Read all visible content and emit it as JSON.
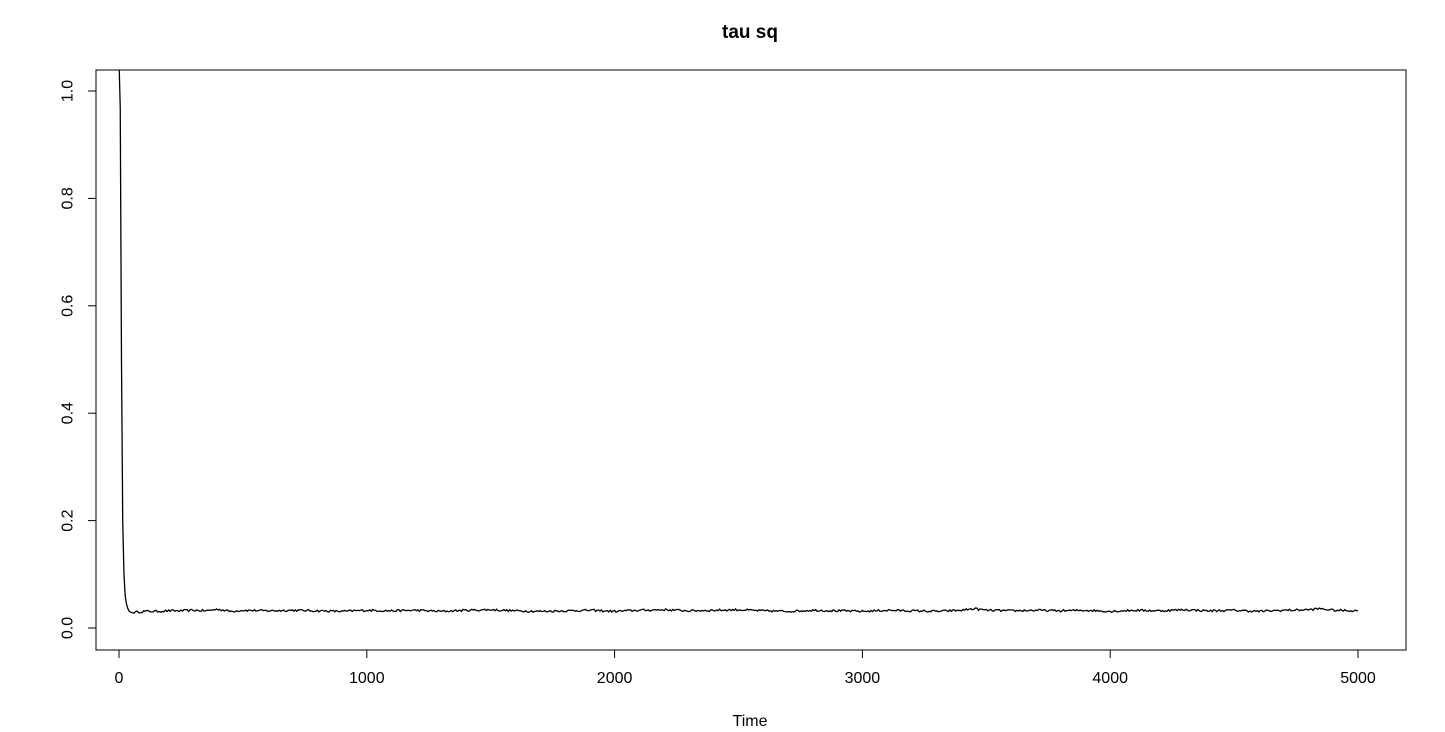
{
  "chart_data": {
    "type": "line",
    "title": "tau sq",
    "xlabel": "Time",
    "ylabel": "",
    "xlim": [
      0,
      5000
    ],
    "ylim": [
      0,
      1.0
    ],
    "x_ticks": [
      0,
      1000,
      2000,
      3000,
      4000,
      5000
    ],
    "x_tick_labels": [
      "0",
      "1000",
      "2000",
      "3000",
      "4000",
      "5000"
    ],
    "y_ticks": [
      0.0,
      0.2,
      0.4,
      0.6,
      0.8,
      1.0
    ],
    "y_tick_labels": [
      "0.0",
      "0.2",
      "0.4",
      "0.6",
      "0.8",
      "1.0"
    ],
    "grid": false,
    "legend": "none",
    "line_color": "#000000",
    "series": [
      {
        "x": [
          1,
          5,
          10,
          15,
          20,
          25,
          30,
          35,
          40,
          45,
          50,
          60,
          80,
          100,
          150,
          200,
          250,
          300,
          350,
          400,
          450,
          500,
          600,
          700,
          800,
          900,
          1000,
          1100,
          1200,
          1300,
          1400,
          1500,
          1600,
          1700,
          1800,
          1900,
          2000,
          2100,
          2200,
          2300,
          2400,
          2500,
          2600,
          2700,
          2800,
          2900,
          3000,
          3100,
          3200,
          3300,
          3400,
          3450,
          3500,
          3600,
          3700,
          3800,
          3900,
          4000,
          4100,
          4200,
          4300,
          4400,
          4500,
          4600,
          4700,
          4800,
          4850,
          4900,
          5000
        ],
        "values": [
          1.04,
          0.97,
          0.5,
          0.2,
          0.1,
          0.06,
          0.045,
          0.037,
          0.032,
          0.03,
          0.029,
          0.029,
          0.03,
          0.031,
          0.031,
          0.032,
          0.032,
          0.033,
          0.032,
          0.035,
          0.031,
          0.033,
          0.032,
          0.033,
          0.032,
          0.031,
          0.033,
          0.032,
          0.033,
          0.031,
          0.033,
          0.034,
          0.032,
          0.031,
          0.032,
          0.033,
          0.031,
          0.033,
          0.034,
          0.032,
          0.033,
          0.034,
          0.032,
          0.031,
          0.033,
          0.032,
          0.031,
          0.033,
          0.032,
          0.031,
          0.033,
          0.036,
          0.033,
          0.032,
          0.033,
          0.032,
          0.033,
          0.031,
          0.033,
          0.032,
          0.034,
          0.032,
          0.033,
          0.031,
          0.033,
          0.034,
          0.036,
          0.033,
          0.032
        ]
      }
    ]
  }
}
